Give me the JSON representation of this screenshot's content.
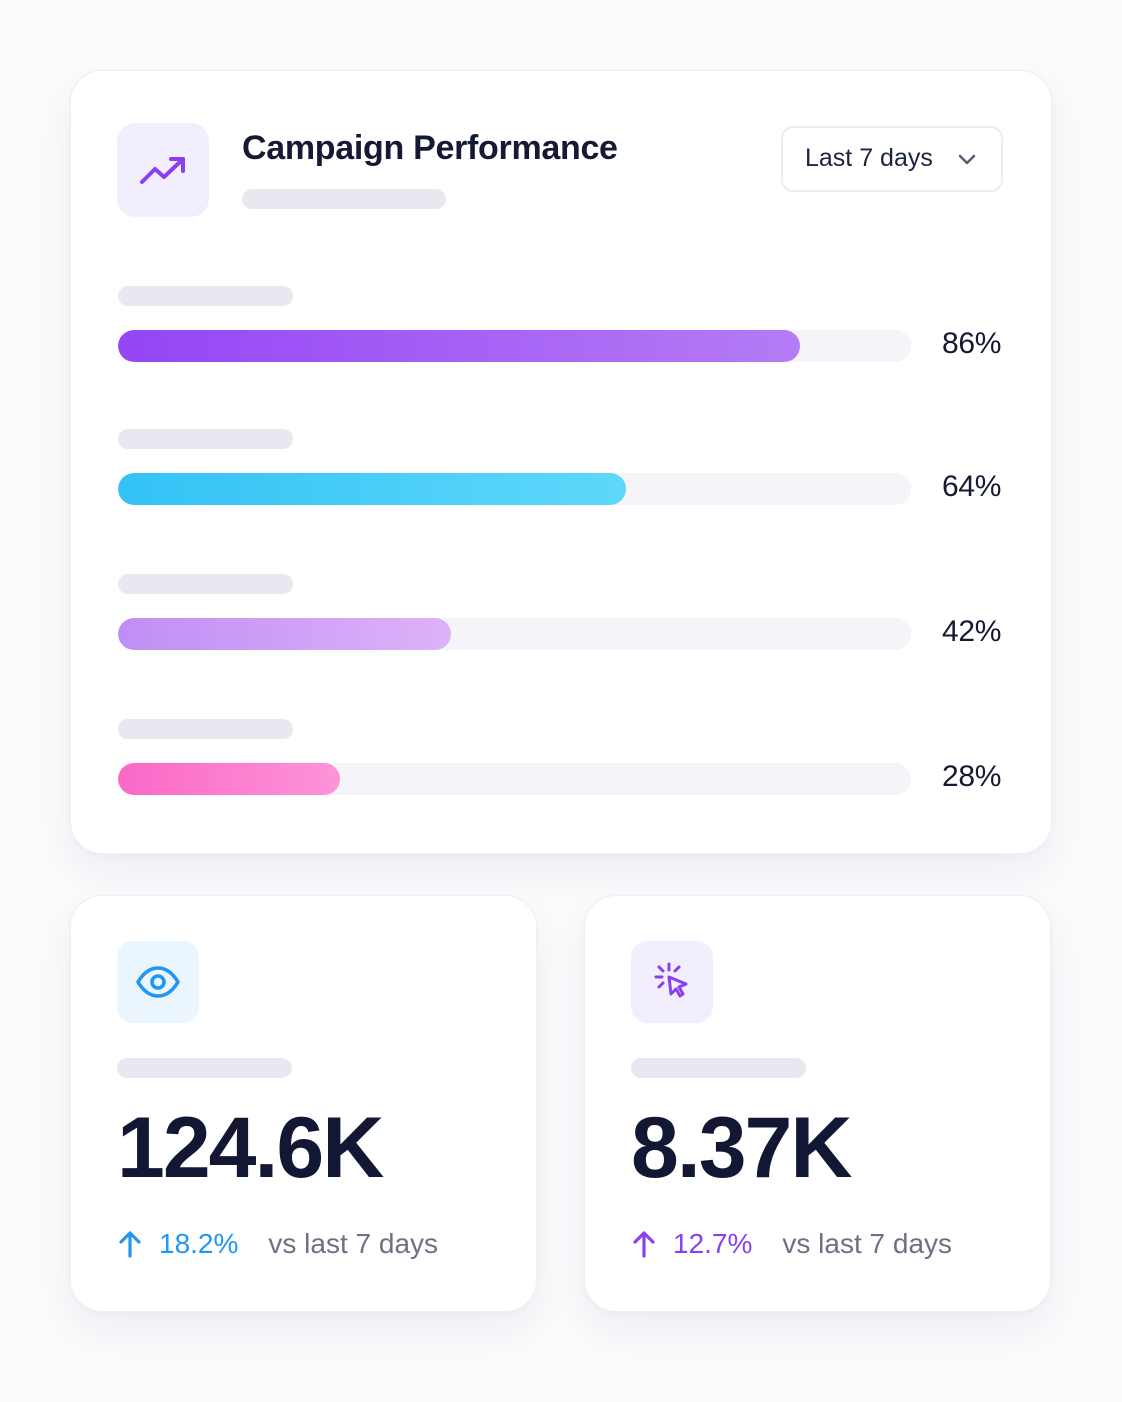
{
  "campaign": {
    "title": "Campaign Performance",
    "header_icon": "trending-up-icon",
    "period_select": {
      "value": "Last 7 days",
      "icon": "chevron-down-icon"
    },
    "metrics": [
      {
        "percent_label": "86%",
        "value": 0.86,
        "gradient": [
          "#9545f5",
          "#b57cf5"
        ]
      },
      {
        "percent_label": "64%",
        "value": 0.64,
        "gradient": [
          "#33c2f5",
          "#5ed8fa"
        ]
      },
      {
        "percent_label": "42%",
        "value": 0.42,
        "gradient": [
          "#bf8ef5",
          "#dcb3f8"
        ]
      },
      {
        "percent_label": "28%",
        "value": 0.28,
        "gradient": [
          "#fa68c6",
          "#fd94d8"
        ]
      }
    ]
  },
  "stats": [
    {
      "icon": "eye-icon",
      "icon_color": "#2196f3",
      "icon_bg": "#ebf5fd",
      "value": "124.6K",
      "change": "18.2%",
      "change_color": "#2196f3",
      "caption": "vs last 7 days"
    },
    {
      "icon": "cursor-click-icon",
      "icon_color": "#8a3ff0",
      "icon_bg": "#f3eefd",
      "value": "8.37K",
      "change": "12.7%",
      "change_color": "#8a3ff0",
      "caption": "vs last 7 days"
    }
  ],
  "colors": {
    "accent": "#8a3ff0",
    "text": "#141a33",
    "muted": "#6e7183"
  }
}
